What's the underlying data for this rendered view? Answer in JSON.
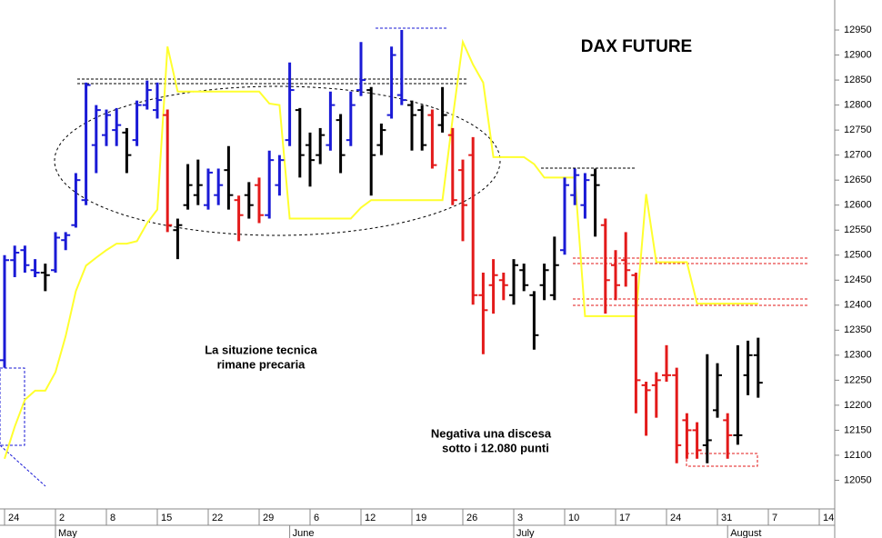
{
  "chart_data": {
    "type": "ohlc",
    "title": "DAX FUTURE",
    "categories": [
      "24",
      null,
      null,
      null,
      null,
      "2",
      null,
      null,
      null,
      null,
      "8",
      null,
      null,
      null,
      null,
      "15",
      null,
      null,
      null,
      null,
      "22",
      null,
      null,
      null,
      null,
      "29",
      null,
      null,
      null,
      null,
      "6",
      null,
      null,
      null,
      null,
      "12",
      null,
      null,
      null,
      null,
      "19",
      null,
      null,
      null,
      null,
      "26",
      null,
      null,
      null,
      null,
      "3",
      null,
      null,
      null,
      null,
      "10",
      null,
      null,
      null,
      null,
      "17",
      null,
      null,
      null,
      null,
      "24",
      null,
      null,
      null,
      null,
      "31",
      null,
      null,
      null,
      null,
      "7",
      null,
      null,
      null,
      null,
      "14",
      null
    ],
    "months": [
      null,
      null,
      null,
      null,
      null,
      "May",
      null,
      null,
      null,
      null,
      null,
      null,
      null,
      null,
      null,
      null,
      null,
      null,
      null,
      null,
      null,
      null,
      null,
      null,
      null,
      null,
      null,
      null,
      "June",
      null,
      null,
      null,
      null,
      null,
      null,
      null,
      null,
      null,
      null,
      null,
      null,
      null,
      null,
      null,
      null,
      null,
      null,
      null,
      null,
      null,
      "July",
      null,
      null,
      null,
      null,
      null,
      null,
      null,
      null,
      null,
      null,
      null,
      null,
      null,
      null,
      null,
      null,
      null,
      null,
      null,
      null,
      "August",
      null,
      null,
      null,
      null,
      null,
      null,
      null,
      null,
      null,
      null
    ],
    "series": [
      {
        "open": [
          12290,
          12490,
          12510,
          12470,
          12465,
          12470,
          12530,
          12560,
          12610,
          12720,
          12740,
          12750,
          12745,
          12730,
          12800,
          12790,
          12780,
          12550,
          12600,
          12620,
          12600,
          12620,
          12670,
          12610,
          12620,
          12640,
          12580,
          12640,
          12730,
          12790,
          12720,
          12700,
          12720,
          12770,
          12730,
          12830,
          12830,
          12720,
          12780,
          12820,
          12800,
          12790,
          12780,
          12760,
          12740,
          12670,
          12700,
          12420,
          12440,
          12450,
          12420,
          12470,
          12420,
          12440,
          12420,
          12510,
          12620,
          12600,
          12660,
          12560,
          12480,
          12490,
          12460,
          12240,
          12240,
          12260,
          12260,
          12170,
          12150,
          12120,
          12190,
          12170,
          12140,
          12260,
          12300,
          null,
          null,
          null,
          null,
          null,
          null,
          null
        ],
        "high": [
          12500,
          12519,
          12519,
          12492,
          12483,
          12546,
          12546,
          12664,
          12845,
          12800,
          12791,
          12794,
          12754,
          12809,
          12849,
          12845,
          12791,
          12573,
          12682,
          12691,
          12673,
          12673,
          12718,
          12619,
          12646,
          12655,
          12709,
          12700,
          12885,
          12794,
          12745,
          12754,
          12827,
          12782,
          12827,
          12926,
          12836,
          12763,
          12917,
          12950,
          12809,
          12800,
          12791,
          12836,
          12754,
          12691,
          12736,
          12465,
          12492,
          12465,
          12492,
          12483,
          12428,
          12483,
          12537,
          12655,
          12673,
          12664,
          12673,
          12573,
          12510,
          12546,
          12465,
          12247,
          12266,
          12320,
          12275,
          12184,
          12166,
          12302,
          12284,
          12184,
          12320,
          12329,
          12335,
          null,
          null,
          null,
          null,
          null,
          null,
          null
        ],
        "low": [
          12275,
          12456,
          12465,
          12456,
          12428,
          12465,
          12510,
          12555,
          12600,
          12664,
          12718,
          12718,
          12664,
          12718,
          12791,
          12773,
          12546,
          12492,
          12591,
          12600,
          12591,
          12600,
          12591,
          12528,
          12573,
          12564,
          12573,
          12619,
          12718,
          12655,
          12637,
          12682,
          12709,
          12664,
          12718,
          12818,
          12619,
          12700,
          12773,
          12800,
          12709,
          12709,
          12673,
          12745,
          12600,
          12528,
          12401,
          12302,
          12383,
          12410,
          12401,
          12428,
          12311,
          12410,
          12410,
          12501,
          12600,
          12573,
          12537,
          12383,
          12410,
          12437,
          12184,
          12139,
          12175,
          12247,
          12084,
          12093,
          12093,
          12084,
          12175,
          12093,
          12121,
          12220,
          12215,
          null,
          null,
          null,
          null,
          null,
          null,
          null
        ],
        "close": [
          12490,
          12505,
          12480,
          12465,
          12460,
          12535,
          12540,
          12650,
          12840,
          12790,
          12780,
          12760,
          12700,
          12800,
          12830,
          12810,
          12560,
          12560,
          12640,
          12640,
          12665,
          12640,
          12620,
          12580,
          12600,
          12580,
          12690,
          12690,
          12830,
          12700,
          12690,
          12740,
          12800,
          12700,
          12800,
          12850,
          12700,
          12750,
          12900,
          12810,
          12780,
          12720,
          12680,
          12780,
          12610,
          12600,
          12420,
          12390,
          12460,
          12440,
          12480,
          12440,
          12340,
          12470,
          12480,
          12640,
          12660,
          12650,
          12640,
          12450,
          12440,
          12470,
          12250,
          12230,
          12250,
          12260,
          12120,
          12150,
          12110,
          12130,
          12260,
          12140,
          12140,
          12300,
          12245,
          null,
          null,
          null,
          null,
          null,
          null,
          null
        ],
        "colors": [
          "#1a1ad6",
          "#1a1ad6",
          "#1a1ad6",
          "#1a1ad6",
          "#000000",
          "#1a1ad6",
          "#1a1ad6",
          "#1a1ad6",
          "#1a1ad6",
          "#1a1ad6",
          "#1a1ad6",
          "#1a1ad6",
          "#000000",
          "#1a1ad6",
          "#1a1ad6",
          "#1a1ad6",
          "#e31a1a",
          "#000000",
          "#000000",
          "#000000",
          "#1a1ad6",
          "#1a1ad6",
          "#000000",
          "#e31a1a",
          "#000000",
          "#e31a1a",
          "#1a1ad6",
          "#1a1ad6",
          "#1a1ad6",
          "#000000",
          "#000000",
          "#000000",
          "#1a1ad6",
          "#000000",
          "#1a1ad6",
          "#1a1ad6",
          "#000000",
          "#000000",
          "#1a1ad6",
          "#1a1ad6",
          "#000000",
          "#000000",
          "#e31a1a",
          "#000000",
          "#e31a1a",
          "#e31a1a",
          "#e31a1a",
          "#e31a1a",
          "#e31a1a",
          "#e31a1a",
          "#000000",
          "#000000",
          "#000000",
          "#000000",
          "#000000",
          "#1a1ad6",
          "#1a1ad6",
          "#1a1ad6",
          "#000000",
          "#e31a1a",
          "#e31a1a",
          "#e31a1a",
          "#e31a1a",
          "#e31a1a",
          "#e31a1a",
          "#e31a1a",
          "#e31a1a",
          "#e31a1a",
          "#e31a1a",
          "#000000",
          "#000000",
          "#e31a1a",
          "#000000",
          "#000000",
          "#000000",
          null,
          null,
          null,
          null,
          null,
          null,
          null
        ]
      }
    ],
    "lines": [
      {
        "color": "#ffff2e",
        "values": [
          12093,
          12157,
          12211,
          12229,
          12229,
          12266,
          12338,
          12428,
          12479,
          12495,
          12510,
          12523,
          12523,
          12528,
          12564,
          12591,
          12917,
          12827,
          12827,
          12827,
          12827,
          12827,
          12827,
          12827,
          12827,
          12827,
          12803,
          12800,
          12573,
          12573,
          12573,
          12573,
          12573,
          12573,
          12573,
          12595,
          12610,
          12610,
          12610,
          12610,
          12610,
          12610,
          12610,
          12610,
          12773,
          12926,
          12881,
          12845,
          12696,
          12696,
          12696,
          12696,
          12682,
          12655,
          12655,
          12655,
          12655,
          12378,
          12378,
          12378,
          12378,
          12378,
          12378,
          12622,
          12486,
          12486,
          12486,
          12486,
          12403,
          12403,
          12403,
          12403,
          12403,
          12403,
          12403,
          null,
          null,
          null,
          null,
          null,
          null,
          null
        ]
      }
    ],
    "annotations": [
      {
        "lines": [
          "La situzione tecnica",
          "rimane precaria"
        ],
        "color": "#e31a1a"
      },
      {
        "lines": [
          "Negativa una discesa",
          "sotto i 12.080 punti"
        ],
        "color": "#e31a1a"
      }
    ],
    "ylim": [
      11960,
      13010
    ],
    "yticks": [
      12050,
      12100,
      12150,
      12200,
      12250,
      12300,
      12350,
      12400,
      12450,
      12500,
      12550,
      12600,
      12650,
      12700,
      12750,
      12800,
      12850,
      12900,
      12950
    ]
  }
}
